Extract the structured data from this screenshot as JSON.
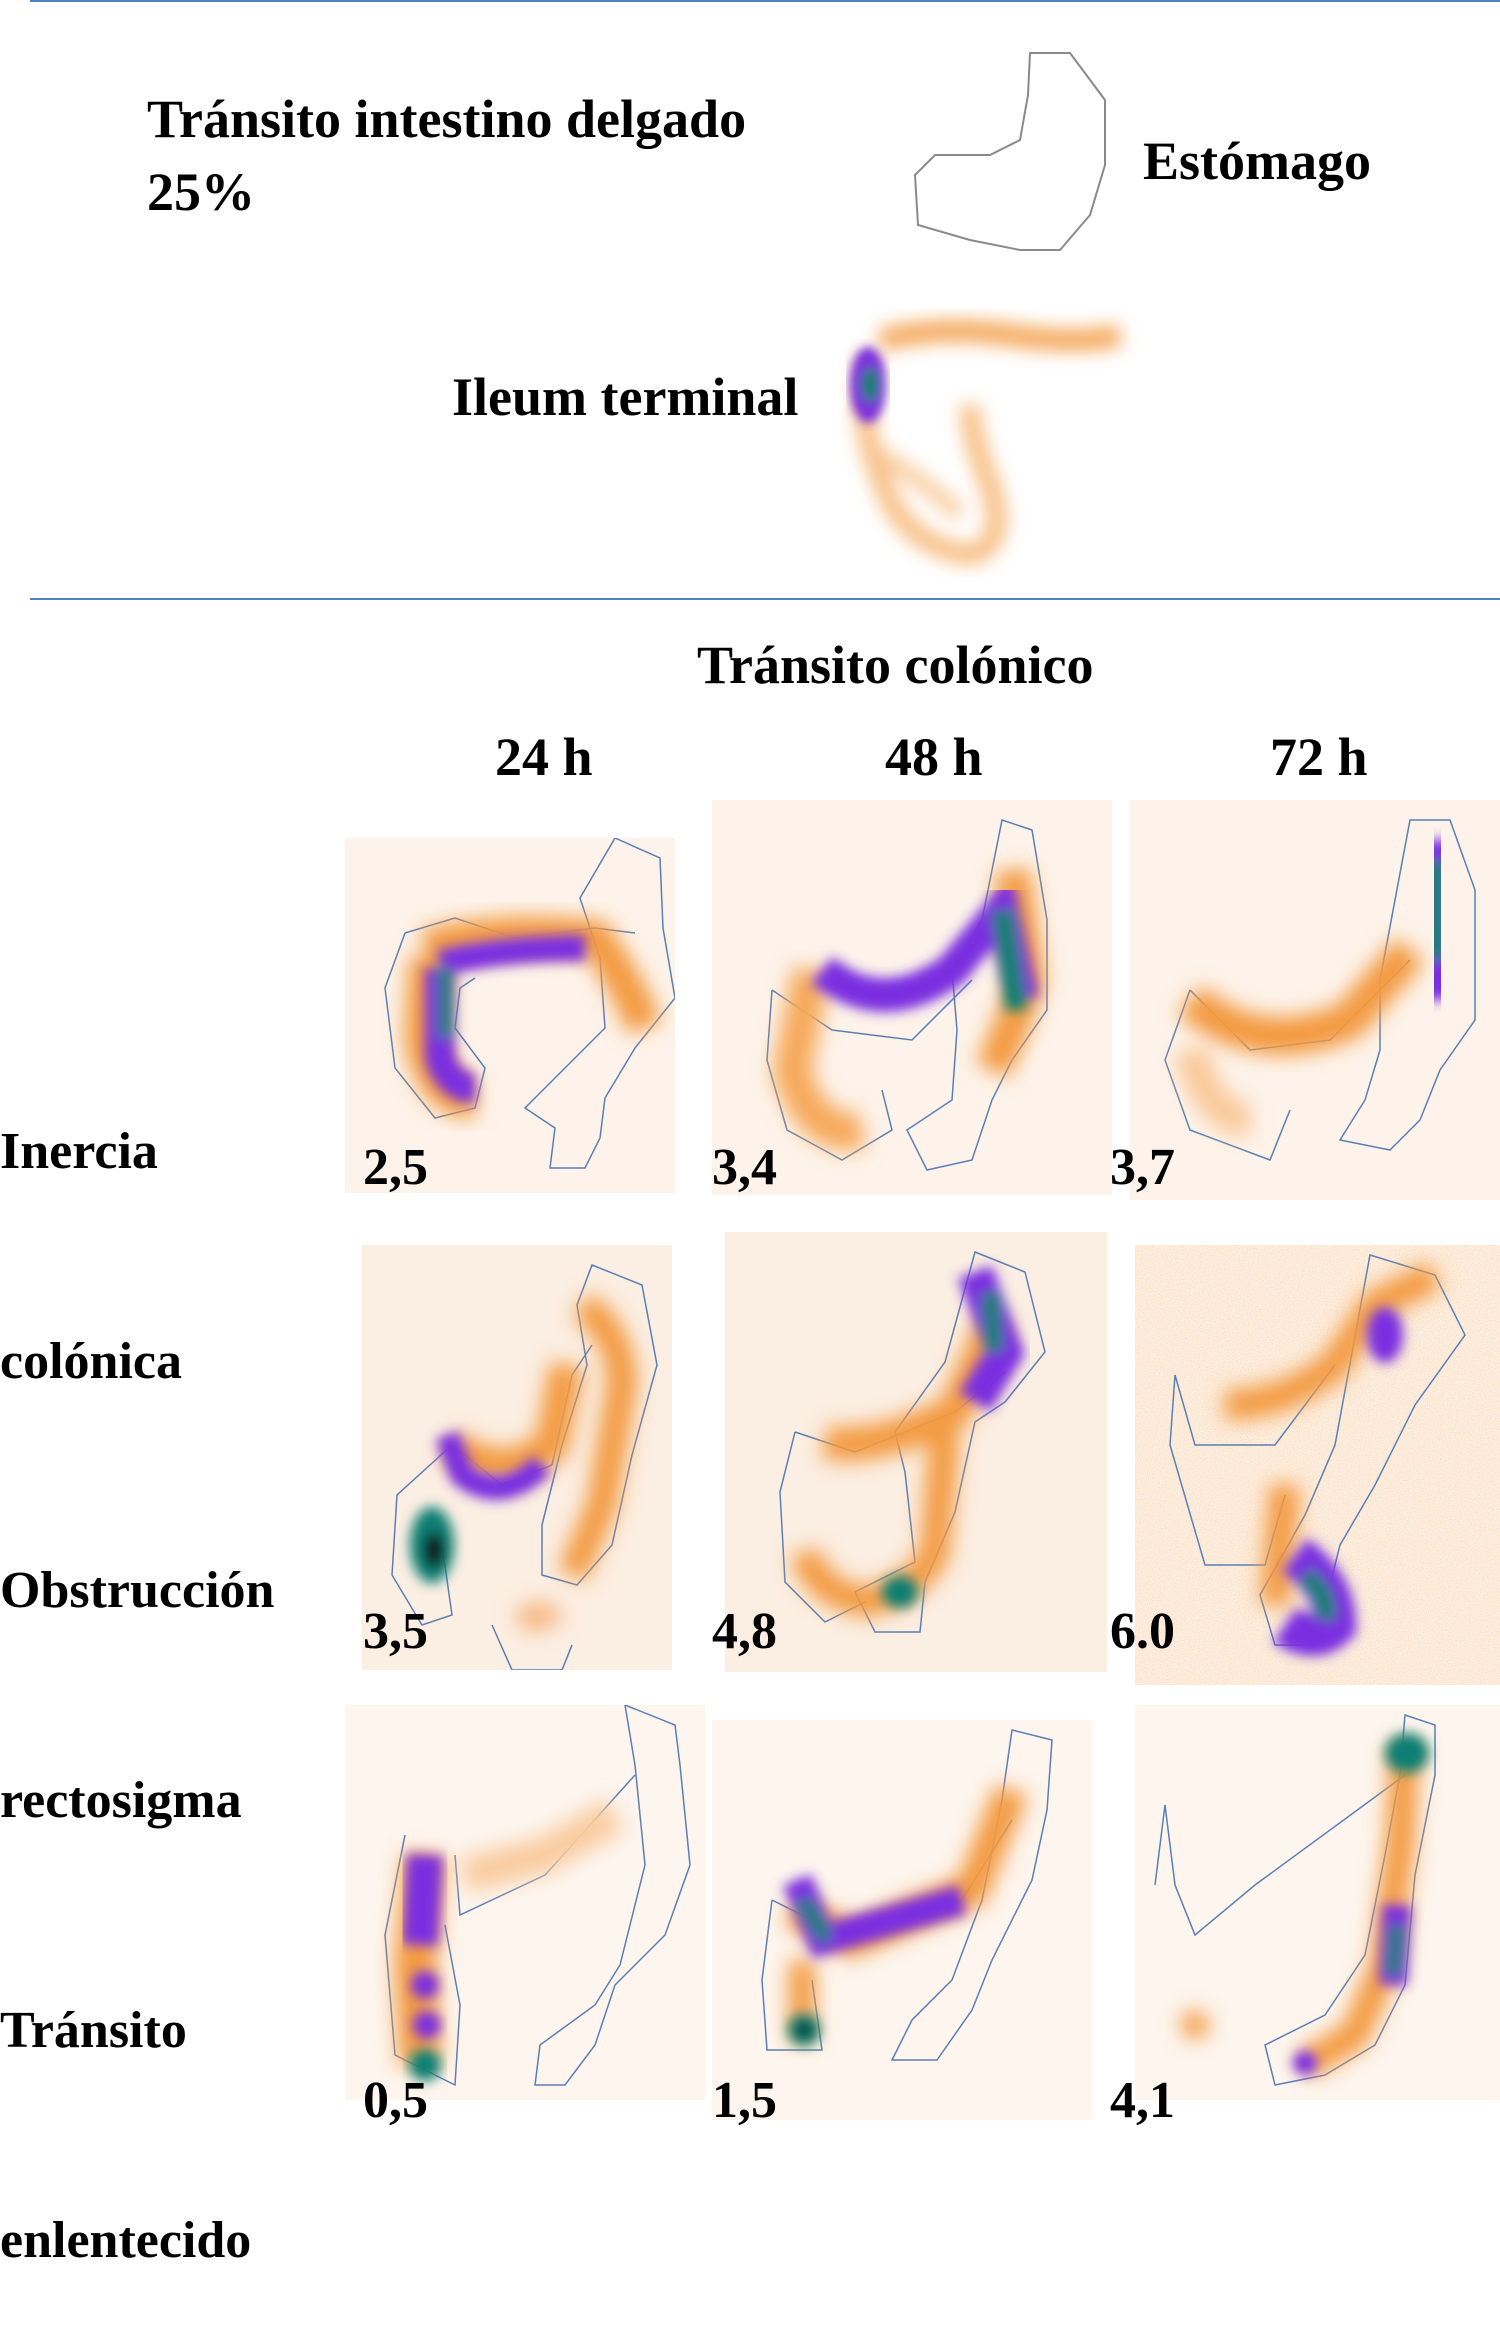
{
  "top": {
    "title_line1": "Tránsito intestino delgado",
    "title_line2": "25%",
    "stomach_label": "Estómago",
    "ileum_label": "Ileum terminal"
  },
  "colonic": {
    "heading": "Tránsito colónico",
    "times": [
      "24 h",
      "48 h",
      "72 h"
    ],
    "rows": [
      {
        "label_line1": "Inercia",
        "label_line2": "colónica",
        "values": [
          "2,5",
          "3,4",
          "3,7"
        ]
      },
      {
        "label_line1": "Obstrucción",
        "label_line2": "rectosigma",
        "values": [
          "3,5",
          "4,8",
          "6.0"
        ]
      },
      {
        "label_line1": "Tránsito",
        "label_line2": "enlentecido",
        "values": [
          "0,5",
          "1,5",
          "4,1"
        ]
      }
    ]
  },
  "colors": {
    "divider": "#4f81bd",
    "outline": "#5b7fb5",
    "low_activity": "#f08c2a",
    "mid_activity": "#7a2ee0",
    "high_activity": "#0f7f73"
  }
}
